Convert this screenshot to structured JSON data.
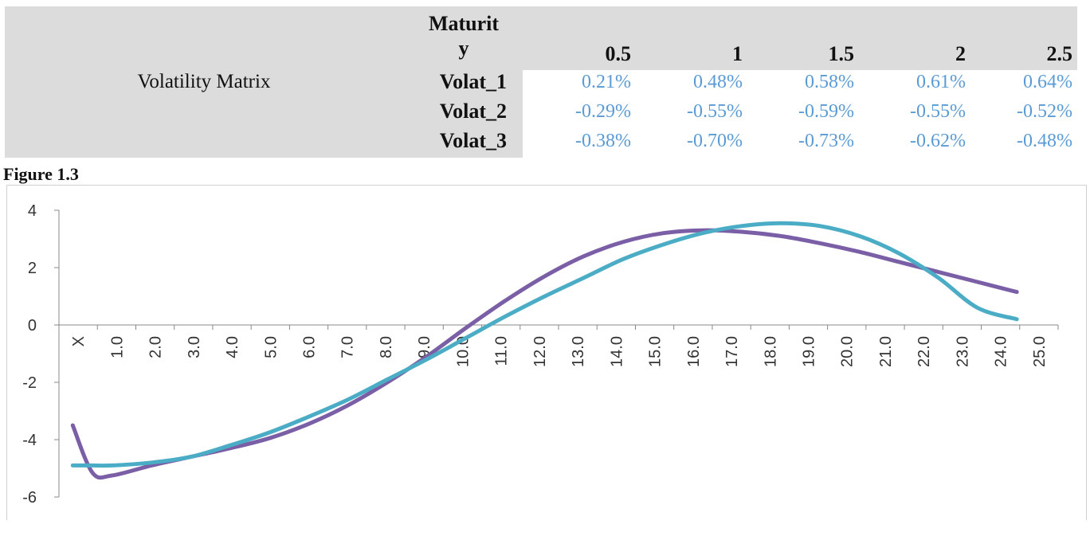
{
  "table": {
    "title": "Volatility Matrix",
    "maturity_label_line1": "Maturit",
    "maturity_label_line2": "y",
    "maturities": [
      "0.5",
      "1",
      "1.5",
      "2",
      "2.5"
    ],
    "rows": [
      {
        "label": "Volat_1",
        "values": [
          "0.21%",
          "0.48%",
          "0.58%",
          "0.61%",
          "0.64%"
        ]
      },
      {
        "label": "Volat_2",
        "values": [
          "-0.29%",
          "-0.55%",
          "-0.59%",
          "-0.55%",
          "-0.52%"
        ]
      },
      {
        "label": "Volat_3",
        "values": [
          "-0.38%",
          "-0.70%",
          "-0.73%",
          "-0.62%",
          "-0.48%"
        ]
      }
    ]
  },
  "figure_label": "Figure 1.3",
  "chart_data": {
    "type": "line",
    "title": "",
    "xlabel": "",
    "ylabel": "",
    "ylim": [
      -6,
      4
    ],
    "yticks": [
      "4",
      "2",
      "0",
      "-2",
      "-4",
      "-6"
    ],
    "categories": [
      "X",
      "1.0",
      "2.0",
      "3.0",
      "4.0",
      "5.0",
      "6.0",
      "7.0",
      "8.0",
      "9.0",
      "10.0",
      "11.0",
      "12.0",
      "13.0",
      "14.0",
      "15.0",
      "16.0",
      "17.0",
      "18.0",
      "19.0",
      "20.0",
      "21.0",
      "22.0",
      "23.0",
      "24.0",
      "25.0"
    ],
    "series": [
      {
        "name": "series-purple",
        "color": "#7a5fa6",
        "x": [
          0,
          0.5,
          1,
          2,
          3,
          4,
          5,
          6,
          7,
          8,
          9,
          10,
          11,
          12,
          13,
          14,
          15,
          16,
          17,
          18,
          19,
          20,
          21,
          22,
          23,
          24
        ],
        "values": [
          -3.5,
          -5.15,
          -5.25,
          -4.9,
          -4.6,
          -4.3,
          -3.95,
          -3.45,
          -2.8,
          -2.0,
          -1.1,
          -0.1,
          0.85,
          1.7,
          2.4,
          2.9,
          3.2,
          3.3,
          3.25,
          3.1,
          2.85,
          2.55,
          2.2,
          1.85,
          1.5,
          1.15
        ]
      },
      {
        "name": "series-teal",
        "color": "#4bacc6",
        "x": [
          0,
          0.5,
          1,
          2,
          3,
          4,
          5,
          6,
          7,
          8,
          9,
          10,
          11,
          12,
          13,
          14,
          15,
          16,
          17,
          18,
          19,
          20,
          21,
          22,
          23,
          24
        ],
        "values": [
          -4.9,
          -4.9,
          -4.9,
          -4.8,
          -4.6,
          -4.2,
          -3.75,
          -3.2,
          -2.6,
          -1.9,
          -1.2,
          -0.45,
          0.3,
          1.0,
          1.65,
          2.3,
          2.8,
          3.2,
          3.45,
          3.55,
          3.45,
          3.1,
          2.5,
          1.65,
          0.6,
          0.2
        ]
      }
    ]
  }
}
